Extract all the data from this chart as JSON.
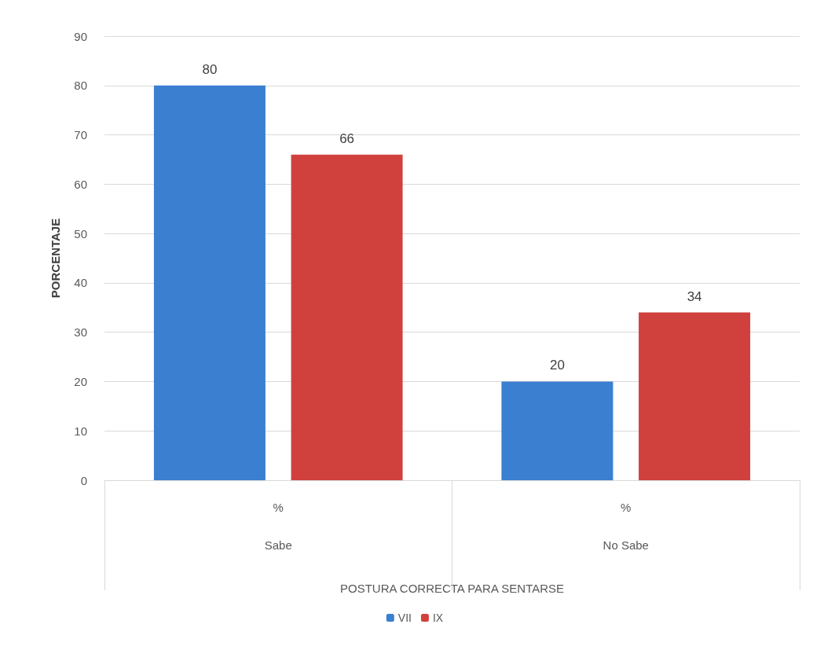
{
  "chart_data": {
    "type": "bar",
    "ylabel": "PORCENTAJE",
    "xlabel": "POSTURA CORRECTA PARA SENTARSE",
    "categories": [
      "Sabe",
      "No Sabe"
    ],
    "series": [
      {
        "name": "VII",
        "color": "#3a7fd0",
        "values": [
          80,
          20
        ]
      },
      {
        "name": "IX",
        "color": "#d0413e",
        "values": [
          66,
          34
        ]
      }
    ],
    "annotations": [
      "%",
      "%"
    ],
    "ylim": [
      0,
      90
    ],
    "yticks": [
      0,
      10,
      20,
      30,
      40,
      50,
      60,
      70,
      80,
      90
    ],
    "grid": "y",
    "legend": "bottom",
    "data_labels": true
  }
}
